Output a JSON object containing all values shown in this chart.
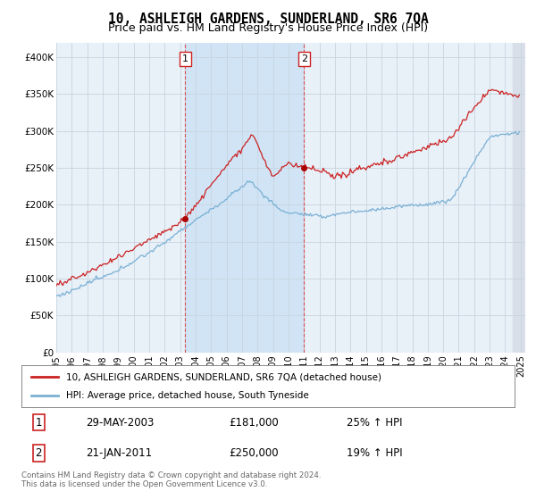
{
  "title": "10, ASHLEIGH GARDENS, SUNDERLAND, SR6 7QA",
  "subtitle": "Price paid vs. HM Land Registry's House Price Index (HPI)",
  "ylim": [
    0,
    420000
  ],
  "yticks": [
    0,
    50000,
    100000,
    150000,
    200000,
    250000,
    300000,
    350000,
    400000
  ],
  "ytick_labels": [
    "£0",
    "£50K",
    "£100K",
    "£150K",
    "£200K",
    "£250K",
    "£300K",
    "£350K",
    "£400K"
  ],
  "sale1_t": 2003.333,
  "sale1_price": 181000,
  "sale2_t": 2011.0,
  "sale2_price": 250000,
  "hpi_line_color": "#7ab0d4",
  "price_line_color": "#cc2222",
  "sale_dot_color": "#aa0000",
  "background_color": "#e8f0f8",
  "shade_color": "#d0e4f5",
  "hatch_color": "#c0c8d0",
  "vline_color": "#dd4444",
  "grid_color": "#c8d4e0",
  "legend_line1": "10, ASHLEIGH GARDENS, SUNDERLAND, SR6 7QA (detached house)",
  "legend_line2": "HPI: Average price, detached house, South Tyneside",
  "table_row1": [
    "1",
    "29-MAY-2003",
    "£181,000",
    "25% ↑ HPI"
  ],
  "table_row2": [
    "2",
    "21-JAN-2011",
    "£250,000",
    "19% ↑ HPI"
  ],
  "footer": "Contains HM Land Registry data © Crown copyright and database right 2024.\nThis data is licensed under the Open Government Licence v3.0.",
  "title_fontsize": 10.5,
  "subtitle_fontsize": 9,
  "xstart": 1995,
  "xend": 2025.3
}
